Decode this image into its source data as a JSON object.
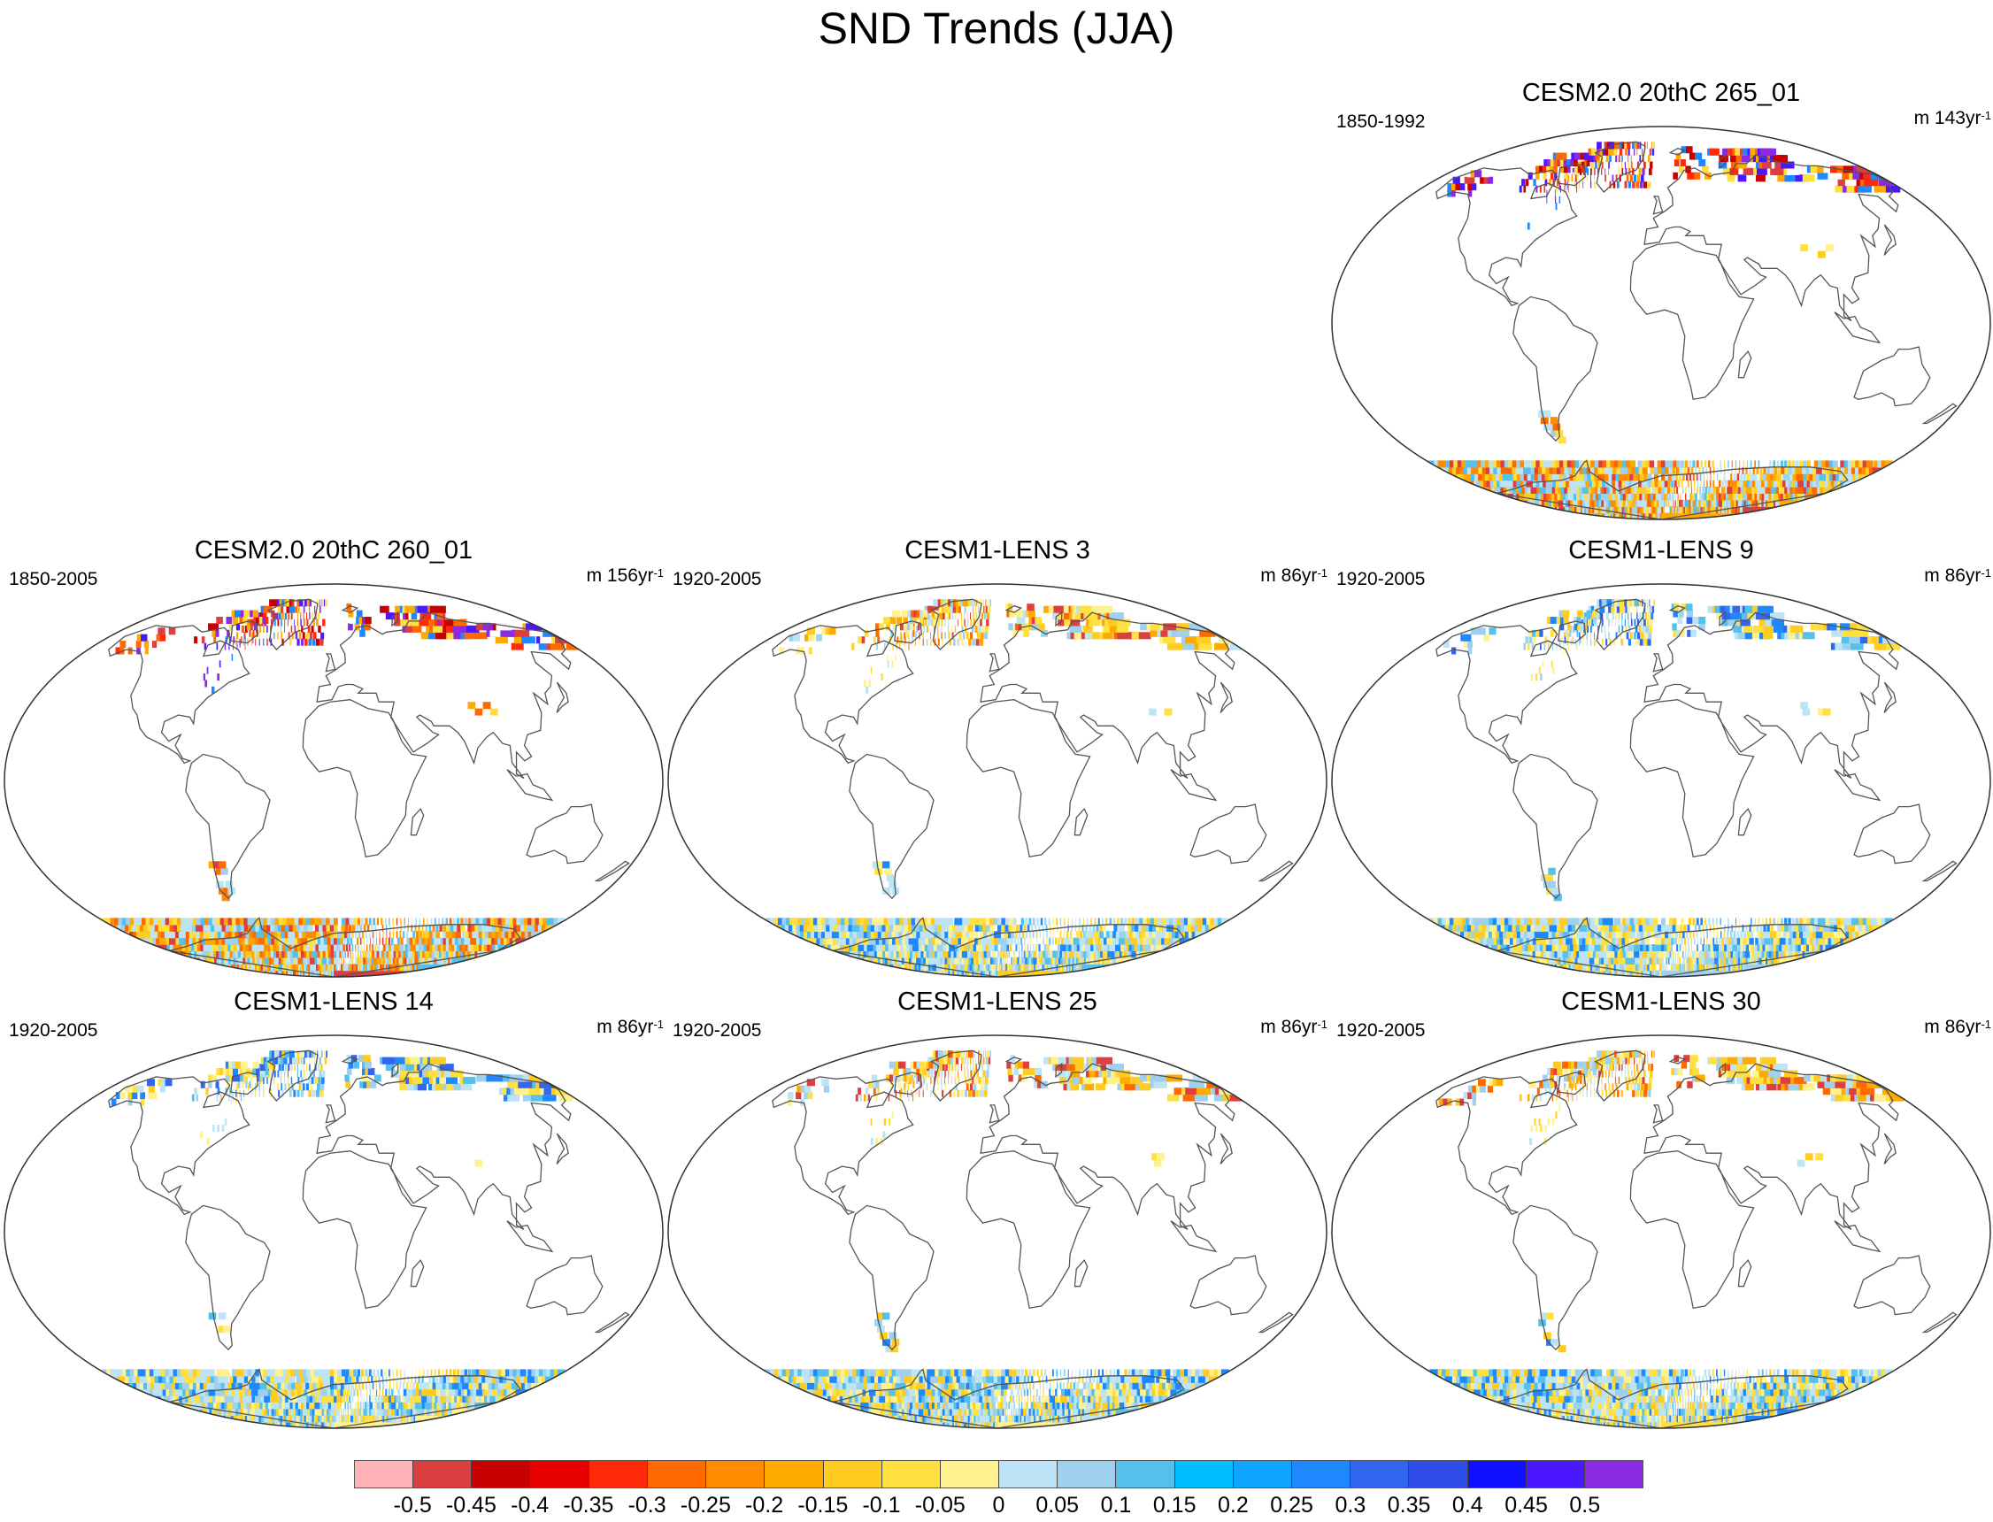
{
  "title": "SND Trends (JJA)",
  "units_prefix": "m",
  "units_suffix_sup": "-1",
  "panels": [
    {
      "id": "p0",
      "title": "CESM2.0 20thC 265_01",
      "period": "1850-1992",
      "rate": "143yr",
      "style": "cesm2",
      "col": 2,
      "row": 0
    },
    {
      "id": "p1",
      "title": "CESM2.0 20thC 260_01",
      "period": "1850-2005",
      "rate": "156yr",
      "style": "cesm2",
      "col": 0,
      "row": 1
    },
    {
      "id": "p2",
      "title": "CESM1-LENS 3",
      "period": "1920-2005",
      "rate": "86yr",
      "style": "lens_warm",
      "col": 1,
      "row": 1
    },
    {
      "id": "p3",
      "title": "CESM1-LENS 9",
      "period": "1920-2005",
      "rate": "86yr",
      "style": "lens_cool",
      "col": 2,
      "row": 1
    },
    {
      "id": "p4",
      "title": "CESM1-LENS 14",
      "period": "1920-2005",
      "rate": "86yr",
      "style": "lens_cool",
      "col": 0,
      "row": 2
    },
    {
      "id": "p5",
      "title": "CESM1-LENS 25",
      "period": "1920-2005",
      "rate": "86yr",
      "style": "lens_warm",
      "col": 1,
      "row": 2
    },
    {
      "id": "p6",
      "title": "CESM1-LENS 30",
      "period": "1920-2005",
      "rate": "86yr",
      "style": "lens_warm",
      "col": 2,
      "row": 2
    }
  ],
  "colorbar": {
    "colors": [
      "#FFB3B8",
      "#DC3F3F",
      "#C80000",
      "#E80000",
      "#FF2A0A",
      "#FF6A00",
      "#FF8C00",
      "#FFAA00",
      "#FFCC22",
      "#FFE040",
      "#FFF28E",
      "#BDE4F4",
      "#9ED1EE",
      "#55C0EE",
      "#00BFFF",
      "#10A5FF",
      "#2088FF",
      "#3366EE",
      "#2E4DE6",
      "#1010FF",
      "#4B17FF",
      "#8A2BE2"
    ],
    "labels": [
      "-0.5",
      "-0.45",
      "-0.4",
      "-0.35",
      "-0.3",
      "-0.25",
      "-0.2",
      "-0.15",
      "-0.1",
      "-0.05",
      "0",
      "0.05",
      "0.1",
      "0.15",
      "0.2",
      "0.25",
      "0.3",
      "0.35",
      "0.4",
      "0.45",
      "0.5"
    ]
  }
}
